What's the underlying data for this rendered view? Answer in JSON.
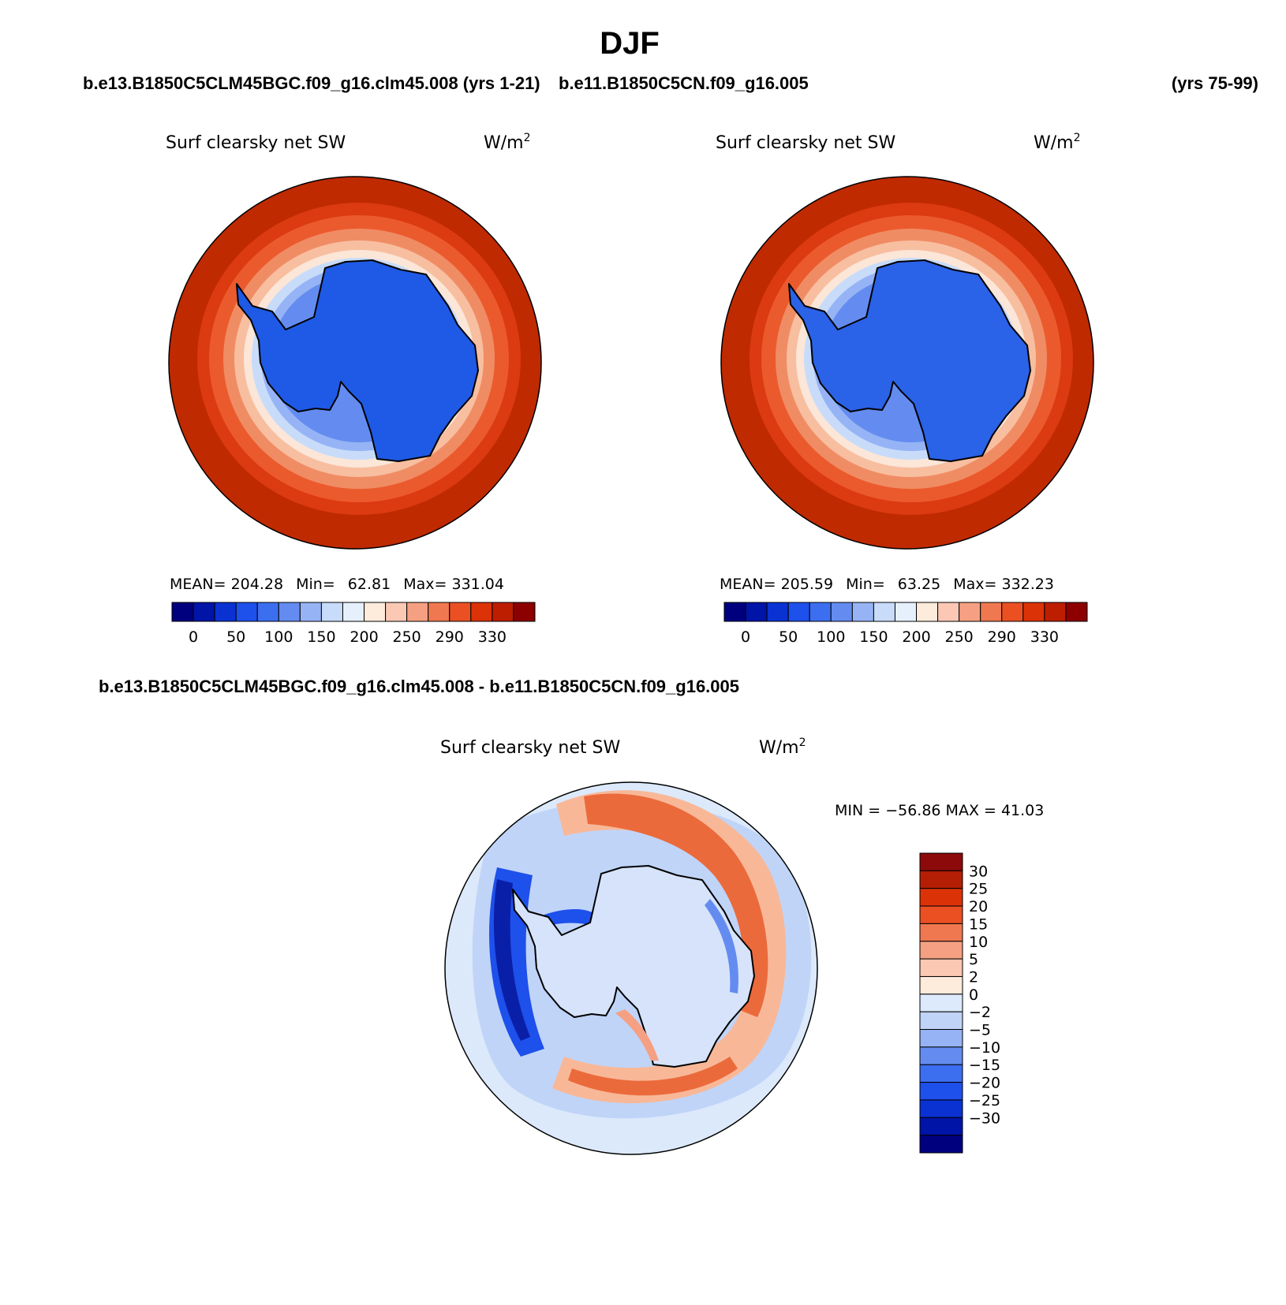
{
  "figure": {
    "title": "DJF",
    "case1_label": "b.e13.B1850C5CLM45BGC.f09_g16.clm45.008 (yrs 1-21)",
    "case2_label": "b.e11.B1850C5CN.f09_g16.005",
    "case2_years": "(yrs 75-99)",
    "diff_label": "b.e13.B1850C5CLM45BGC.f09_g16.clm45.008 - b.e11.B1850C5CN.f09_g16.005"
  },
  "panels": [
    {
      "variable": "Surf clearsky net SW",
      "units_base": "W/m",
      "units_exp": "2",
      "stats": {
        "mean_label": "MEAN=",
        "mean": "204.28",
        "min_label": "Min=",
        "min": "62.81",
        "max_label": "Max=",
        "max": "331.04"
      }
    },
    {
      "variable": "Surf clearsky net SW",
      "units_base": "W/m",
      "units_exp": "2",
      "stats": {
        "mean_label": "MEAN=",
        "mean": "205.59",
        "min_label": "Min=",
        "min": "63.25",
        "max_label": "Max=",
        "max": "332.23"
      }
    }
  ],
  "diff_panel": {
    "variable": "Surf clearsky net SW",
    "units_base": "W/m",
    "units_exp": "2",
    "minmax": "MIN = −56.86 MAX =  41.03"
  },
  "colorbar_abs": {
    "tick_labels": [
      "0",
      "50",
      "100",
      "150",
      "200",
      "250",
      "290",
      "330"
    ],
    "colors": [
      "#00007f",
      "#0014a8",
      "#0a32d2",
      "#1e50eb",
      "#3c6ef0",
      "#648cf0",
      "#96b4f5",
      "#c8dcfa",
      "#e6f0fd",
      "#fdebdc",
      "#fbc8b4",
      "#f5a082",
      "#f07850",
      "#eb5023",
      "#dc3208",
      "#be1e00",
      "#8c0000"
    ]
  },
  "colorbar_diff": {
    "tick_labels": [
      "30",
      "25",
      "20",
      "15",
      "10",
      "5",
      "2",
      "0",
      "−2",
      "−5",
      "−10",
      "−15",
      "−20",
      "−25",
      "−30"
    ],
    "colors": [
      "#8c0a0a",
      "#b41e05",
      "#dc3208",
      "#eb5023",
      "#f07850",
      "#f5a082",
      "#fbc8b4",
      "#fdebdc",
      "#dceafb",
      "#c0d4f8",
      "#96b4f5",
      "#648cf0",
      "#3c6ef0",
      "#1e50eb",
      "#0a32d2",
      "#0014a8",
      "#00007f"
    ]
  },
  "map_colors": {
    "outer_abs": "#bf2a00",
    "ice_abs": "#1e5ae6",
    "diff_background": "#dce9fb",
    "coast": "#000000"
  }
}
